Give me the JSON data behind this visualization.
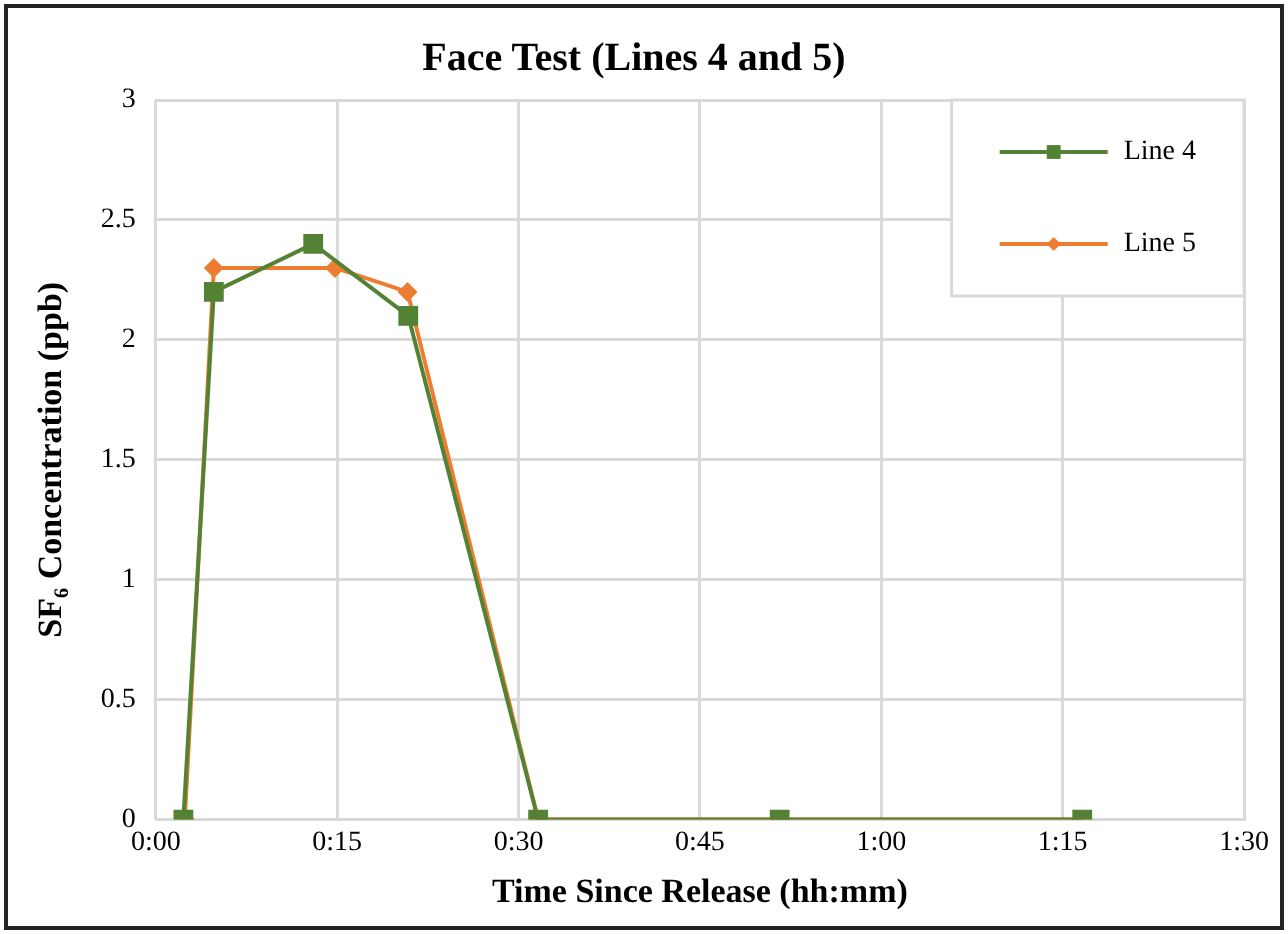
{
  "chart_data": {
    "type": "line",
    "title": "Face Test (Lines 4 and 5)",
    "xlabel": "Time Since Release (hh:mm)",
    "ylabel": "SF₆ Concentration (ppb)",
    "xlim": [
      0,
      1.5
    ],
    "xticks": [
      {
        "value": 0,
        "label": "0:00"
      },
      {
        "value": 0.25,
        "label": "0:15"
      },
      {
        "value": 0.5,
        "label": "0:30"
      },
      {
        "value": 0.75,
        "label": "0:45"
      },
      {
        "value": 1,
        "label": "1:00"
      },
      {
        "value": 1.25,
        "label": "1:15"
      },
      {
        "value": 1.5,
        "label": "1:30"
      }
    ],
    "ylim": [
      0,
      3
    ],
    "yticks": [
      0,
      0.5,
      1,
      1.5,
      2,
      2.5,
      3
    ],
    "grid": true,
    "legend": "top right",
    "series": [
      {
        "name": "Line 4",
        "color": "#548235",
        "marker": "square",
        "x": [
          0.038,
          0.08,
          0.217,
          0.348,
          0.527,
          0.86,
          1.277
        ],
        "values": [
          0,
          2.2,
          2.4,
          2.1,
          0,
          0,
          0
        ]
      },
      {
        "name": "Line 5",
        "color": "#ed7d31",
        "marker": "diamond",
        "x": [
          0.04,
          0.08,
          0.247,
          0.347,
          0.527,
          0.86,
          1.277
        ],
        "values": [
          0,
          2.3,
          2.3,
          2.2,
          0,
          0,
          0
        ]
      }
    ]
  }
}
